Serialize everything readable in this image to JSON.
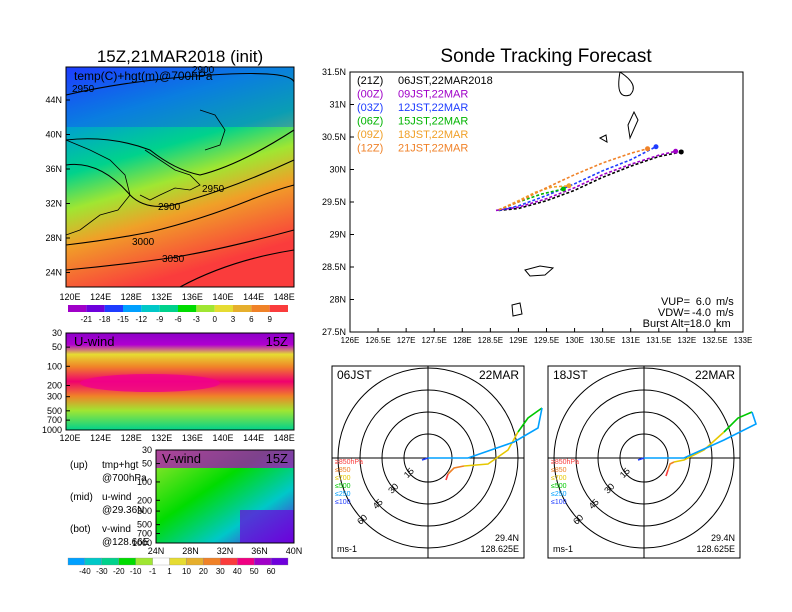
{
  "left_panel": {
    "title": "15Z,21MAR2018 (init)",
    "map_label": "temp(C)+hgt(m)@700hPa",
    "lat_ticks": [
      "44N",
      "40N",
      "36N",
      "32N",
      "28N",
      "24N"
    ],
    "lon_ticks": [
      "120E",
      "124E",
      "128E",
      "132E",
      "136E",
      "140E",
      "144E",
      "148E"
    ],
    "contour_labels": [
      "2950",
      "2900",
      "2950",
      "2900",
      "3000",
      "3050"
    ],
    "temp_colorbar": [
      "-21",
      "-18",
      "-15",
      "-12",
      "-9",
      "-6",
      "-3",
      "0",
      "3",
      "6",
      "9"
    ],
    "temp_colorbar_colors": [
      "#a000c8",
      "#6e00dc",
      "#1e3cff",
      "#00a0ff",
      "#00c8c8",
      "#00d28c",
      "#00dc00",
      "#a0e632",
      "#e6dc32",
      "#e6af2d",
      "#f08228",
      "#fa3c3c"
    ],
    "u_wind": {
      "title": "U-wind",
      "time": "15Z",
      "p_ticks": [
        "30",
        "50",
        "100",
        "200",
        "300",
        "500",
        "700",
        "1000"
      ],
      "lon_ticks": [
        "120E",
        "124E",
        "128E",
        "132E",
        "136E",
        "140E",
        "144E",
        "148E"
      ]
    },
    "v_wind": {
      "title": "V-wind",
      "time": "15Z",
      "p_ticks": [
        "30",
        "50",
        "100",
        "200",
        "300",
        "500",
        "700",
        "1000"
      ],
      "lat_ticks": [
        "24N",
        "28N",
        "32N",
        "36N",
        "40N"
      ]
    },
    "wind_colorbar": [
      "-40",
      "-30",
      "-20",
      "-10",
      "-1",
      "1",
      "10",
      "20",
      "30",
      "40",
      "50",
      "60"
    ],
    "wind_colorbar_colors": [
      "#00a0ff",
      "#00c8c8",
      "#00d28c",
      "#00dc00",
      "#a0e632",
      "#ffffff",
      "#e6dc32",
      "#e6af2d",
      "#f08228",
      "#fa3c3c",
      "#f00082",
      "#a000c8",
      "#6e00dc"
    ],
    "legend_notes": [
      {
        "key": "(up)",
        "line1": "tmp+hgt",
        "line2": "@700hPa"
      },
      {
        "key": "(mid)",
        "line1": "u-wind",
        "line2": "@29.36N"
      },
      {
        "key": "(bot)",
        "line1": "v-wind",
        "line2": "@128.66E"
      }
    ]
  },
  "right_panel": {
    "title": "Sonde Tracking Forecast",
    "lat_ticks": [
      "31.5N",
      "31N",
      "30.5N",
      "30N",
      "29.5N",
      "29N",
      "28.5N",
      "28N",
      "27.5N"
    ],
    "lon_ticks": [
      "126E",
      "126.5E",
      "127E",
      "127.5E",
      "128E",
      "128.5E",
      "129E",
      "129.5E",
      "130E",
      "130.5E",
      "131E",
      "131.5E",
      "132E",
      "132.5E",
      "133E"
    ],
    "legend": [
      {
        "code": "(21Z)",
        "label": "06JST,22MAR2018",
        "color": "#000000"
      },
      {
        "code": "(00Z)",
        "label": "09JST,22MAR",
        "color": "#a000c8"
      },
      {
        "code": "(03Z)",
        "label": "12JST,22MAR",
        "color": "#1e3cff"
      },
      {
        "code": "(06Z)",
        "label": "15JST,22MAR",
        "color": "#00b400"
      },
      {
        "code": "(09Z)",
        "label": "18JST,22MAR",
        "color": "#f0a028"
      },
      {
        "code": "(12Z)",
        "label": "21JST,22MAR",
        "color": "#f08228"
      }
    ],
    "params": [
      {
        "label": "VUP=",
        "value": "6.0",
        "unit": "m/s"
      },
      {
        "label": "VDW=",
        "value": "-4.0",
        "unit": "m/s"
      },
      {
        "label": "Burst Alt=",
        "value": "18.0",
        "unit": "km"
      }
    ]
  },
  "chart_data": [
    {
      "type": "line",
      "title": "Sonde Tracking Forecast",
      "xlim": [
        126,
        133
      ],
      "ylim": [
        27.5,
        31.5
      ],
      "series": [
        {
          "name": "06JST,22MAR2018",
          "x": [
            128.65,
            129.0,
            129.5,
            130.0,
            130.5,
            131.0,
            131.5,
            131.9
          ],
          "y": [
            29.37,
            29.4,
            29.52,
            29.68,
            29.88,
            30.05,
            30.2,
            30.27
          ]
        },
        {
          "name": "09JST,22MAR",
          "x": [
            128.6,
            129.0,
            129.5,
            130.0,
            130.5,
            131.0,
            131.5,
            131.8
          ],
          "y": [
            29.37,
            29.42,
            29.55,
            29.72,
            29.92,
            30.08,
            30.22,
            30.28
          ]
        },
        {
          "name": "12JST,22MAR",
          "x": [
            128.65,
            129.0,
            129.5,
            130.0,
            130.5,
            131.0,
            131.45
          ],
          "y": [
            29.37,
            29.44,
            29.6,
            29.78,
            29.98,
            30.15,
            30.35
          ]
        },
        {
          "name": "15JST,22MAR",
          "x": [
            128.65,
            129.0,
            129.4,
            129.8
          ],
          "y": [
            29.38,
            29.5,
            29.62,
            29.7
          ]
        },
        {
          "name": "18JST,22MAR",
          "x": [
            128.65,
            129.0,
            129.3,
            129.6,
            129.9
          ],
          "y": [
            29.38,
            29.52,
            29.65,
            29.73,
            29.75
          ]
        },
        {
          "name": "21JST,22MAR",
          "x": [
            128.65,
            129.0,
            129.5,
            130.0,
            130.5,
            131.0,
            131.3
          ],
          "y": [
            29.38,
            29.5,
            29.72,
            29.92,
            30.1,
            30.25,
            30.32
          ]
        }
      ]
    },
    {
      "type": "line",
      "title": "06JST 22MAR",
      "hodograph": true,
      "rings": [
        15,
        30,
        45,
        60
      ],
      "ring_labels": [
        "15",
        "30",
        "45",
        "60"
      ],
      "location": [
        "29.4N",
        "128.625E"
      ],
      "unit": "ms-1",
      "legend": [
        "≥850hPa",
        "≤850",
        "≤700",
        "≤500",
        "≤250",
        "≤100"
      ],
      "legend_colors": [
        "#fa3c3c",
        "#f08228",
        "#e6c800",
        "#00c800",
        "#00a0ff",
        "#1e3cff"
      ]
    },
    {
      "type": "line",
      "title": "18JST 22MAR",
      "hodograph": true,
      "rings": [
        15,
        30,
        45,
        60
      ],
      "ring_labels": [
        "15",
        "30",
        "45",
        "60"
      ],
      "location": [
        "29.4N",
        "128.625E"
      ],
      "unit": "ms-1",
      "legend": [
        "≥850hPa",
        "≤850",
        "≤700",
        "≤500",
        "≤250",
        "≤100"
      ],
      "legend_colors": [
        "#fa3c3c",
        "#f08228",
        "#e6c800",
        "#00c800",
        "#00a0ff",
        "#1e3cff"
      ]
    }
  ],
  "hodo1": {
    "time": "06JST",
    "date": "22MAR"
  },
  "hodo2": {
    "time": "18JST",
    "date": "22MAR"
  }
}
